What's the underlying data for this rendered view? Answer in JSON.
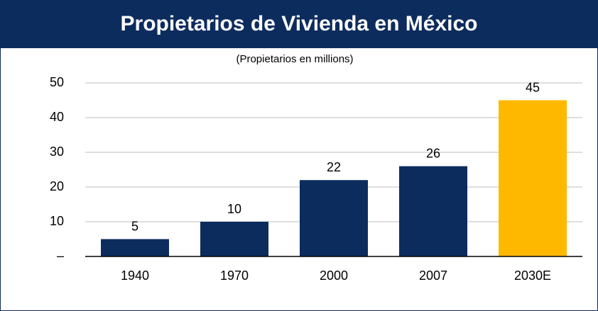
{
  "chart_data": {
    "type": "bar",
    "title": "Propietarios de Vivienda en México",
    "subtitle": "(Propietarios en millions)",
    "categories": [
      "1940",
      "1970",
      "2000",
      "2007",
      "2030E"
    ],
    "values": [
      5,
      10,
      22,
      26,
      45
    ],
    "colors": [
      "#0d2c5e",
      "#0d2c5e",
      "#0d2c5e",
      "#0d2c5e",
      "#ffb800"
    ],
    "ylim": [
      0,
      50
    ],
    "yticks": [
      {
        "value": 0,
        "label": "–"
      },
      10,
      20,
      30,
      40,
      50
    ],
    "grid": true
  }
}
